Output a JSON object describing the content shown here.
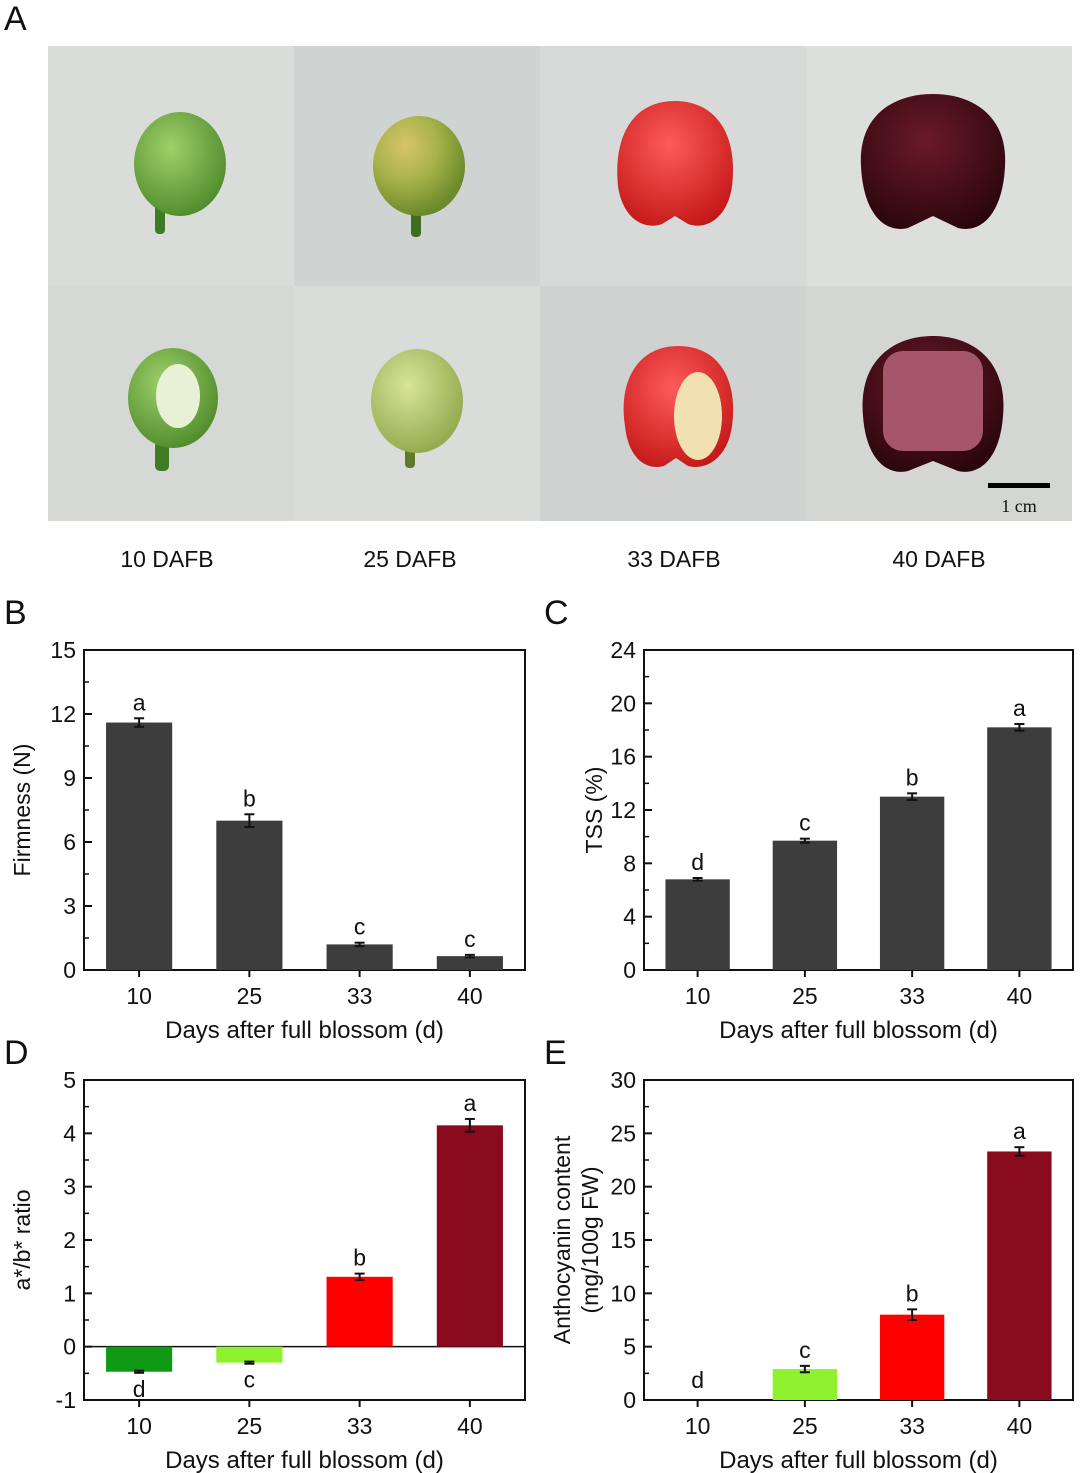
{
  "panels": {
    "a": "A",
    "b": "B",
    "c": "C",
    "d": "D",
    "e": "E"
  },
  "photo": {
    "scale_bar_label": "1 cm",
    "stage_labels": [
      "10 DAFB",
      "25 DAFB",
      "33 DAFB",
      "40 DAFB"
    ],
    "fruit_colors": [
      "#6faa3f",
      "#a7b34a",
      "#e02a2a",
      "#3a0a12"
    ]
  },
  "chart_data": [
    {
      "id": "B",
      "type": "bar",
      "categories": [
        "10",
        "25",
        "33",
        "40"
      ],
      "values": [
        11.6,
        7.0,
        1.2,
        0.65
      ],
      "errors": [
        0.2,
        0.3,
        0.08,
        0.06
      ],
      "letters": [
        "a",
        "b",
        "c",
        "c"
      ],
      "colors": [
        "#3d3d3d",
        "#3d3d3d",
        "#3d3d3d",
        "#3d3d3d"
      ],
      "xlabel": "Days after full blossom (d)",
      "ylabel": "Firmness (N)",
      "ylim": [
        0,
        15
      ],
      "yticks": [
        "0",
        "3",
        "6",
        "9",
        "12",
        "15"
      ]
    },
    {
      "id": "C",
      "type": "bar",
      "categories": [
        "10",
        "25",
        "33",
        "40"
      ],
      "values": [
        6.8,
        9.7,
        13.0,
        18.2
      ],
      "errors": [
        0.1,
        0.15,
        0.25,
        0.25
      ],
      "letters": [
        "d",
        "c",
        "b",
        "a"
      ],
      "colors": [
        "#3d3d3d",
        "#3d3d3d",
        "#3d3d3d",
        "#3d3d3d"
      ],
      "xlabel": "Days after full blossom (d)",
      "ylabel": "TSS (%)",
      "ylim": [
        0,
        24
      ],
      "yticks": [
        "0",
        "4",
        "8",
        "12",
        "16",
        "20",
        "24"
      ]
    },
    {
      "id": "D",
      "type": "bar",
      "categories": [
        "10",
        "25",
        "33",
        "40"
      ],
      "values": [
        -0.47,
        -0.3,
        1.31,
        4.15
      ],
      "errors": [
        0.02,
        0.02,
        0.06,
        0.12
      ],
      "letters": [
        "d",
        "c",
        "b",
        "a"
      ],
      "colors": [
        "#0f9a16",
        "#8ef22f",
        "#ff0000",
        "#8a0a1e"
      ],
      "xlabel": "Days after full blossom (d)",
      "ylabel": "a*/b* ratio",
      "ylim": [
        -1,
        5
      ],
      "yticks": [
        "-1",
        "0",
        "1",
        "2",
        "3",
        "4",
        "5"
      ]
    },
    {
      "id": "E",
      "type": "bar",
      "categories": [
        "10",
        "25",
        "33",
        "40"
      ],
      "values": [
        0,
        2.9,
        8.0,
        23.3
      ],
      "errors": [
        0,
        0.3,
        0.5,
        0.4
      ],
      "letters": [
        "d",
        "c",
        "b",
        "a"
      ],
      "colors": [
        "#0f9a16",
        "#8ef22f",
        "#ff0000",
        "#8a0a1e"
      ],
      "xlabel": "Days after full blossom (d)",
      "ylabel": "Anthocyanin content",
      "ylabel2": "(mg/100g FW)",
      "ylim": [
        0,
        30
      ],
      "yticks": [
        "0",
        "5",
        "10",
        "15",
        "20",
        "25",
        "30"
      ]
    }
  ]
}
